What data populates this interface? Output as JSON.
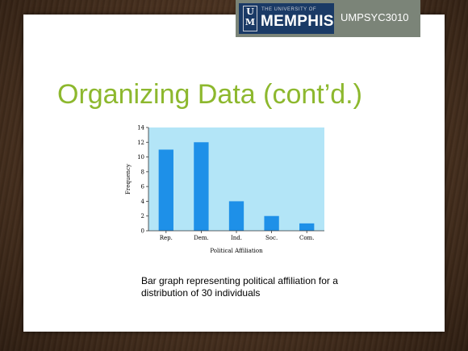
{
  "header": {
    "university_small": "THE UNIVERSITY OF",
    "university_name": "MEMPHIS",
    "course_code": "UMPSYC3010",
    "logo_mark": "U M"
  },
  "slide": {
    "title": "Organizing Data (cont’d.)",
    "caption": "Bar graph representing political affiliation for a distribution of 30 individuals"
  },
  "colors": {
    "title": "#8db82e",
    "bar": "#1e90e8",
    "plot_bg": "#b3e5f7",
    "logo_bg": "#1a3a66"
  },
  "chart_data": {
    "type": "bar",
    "categories": [
      "Rep.",
      "Dem.",
      "Ind.",
      "Soc.",
      "Com."
    ],
    "values": [
      11,
      12,
      4,
      2,
      1
    ],
    "title": "",
    "xlabel": "Political Affiliation",
    "ylabel": "Frequency",
    "ylim": [
      0,
      14
    ],
    "yticks": [
      0,
      2,
      4,
      6,
      8,
      10,
      12,
      14
    ],
    "grid": false,
    "legend": "none"
  }
}
